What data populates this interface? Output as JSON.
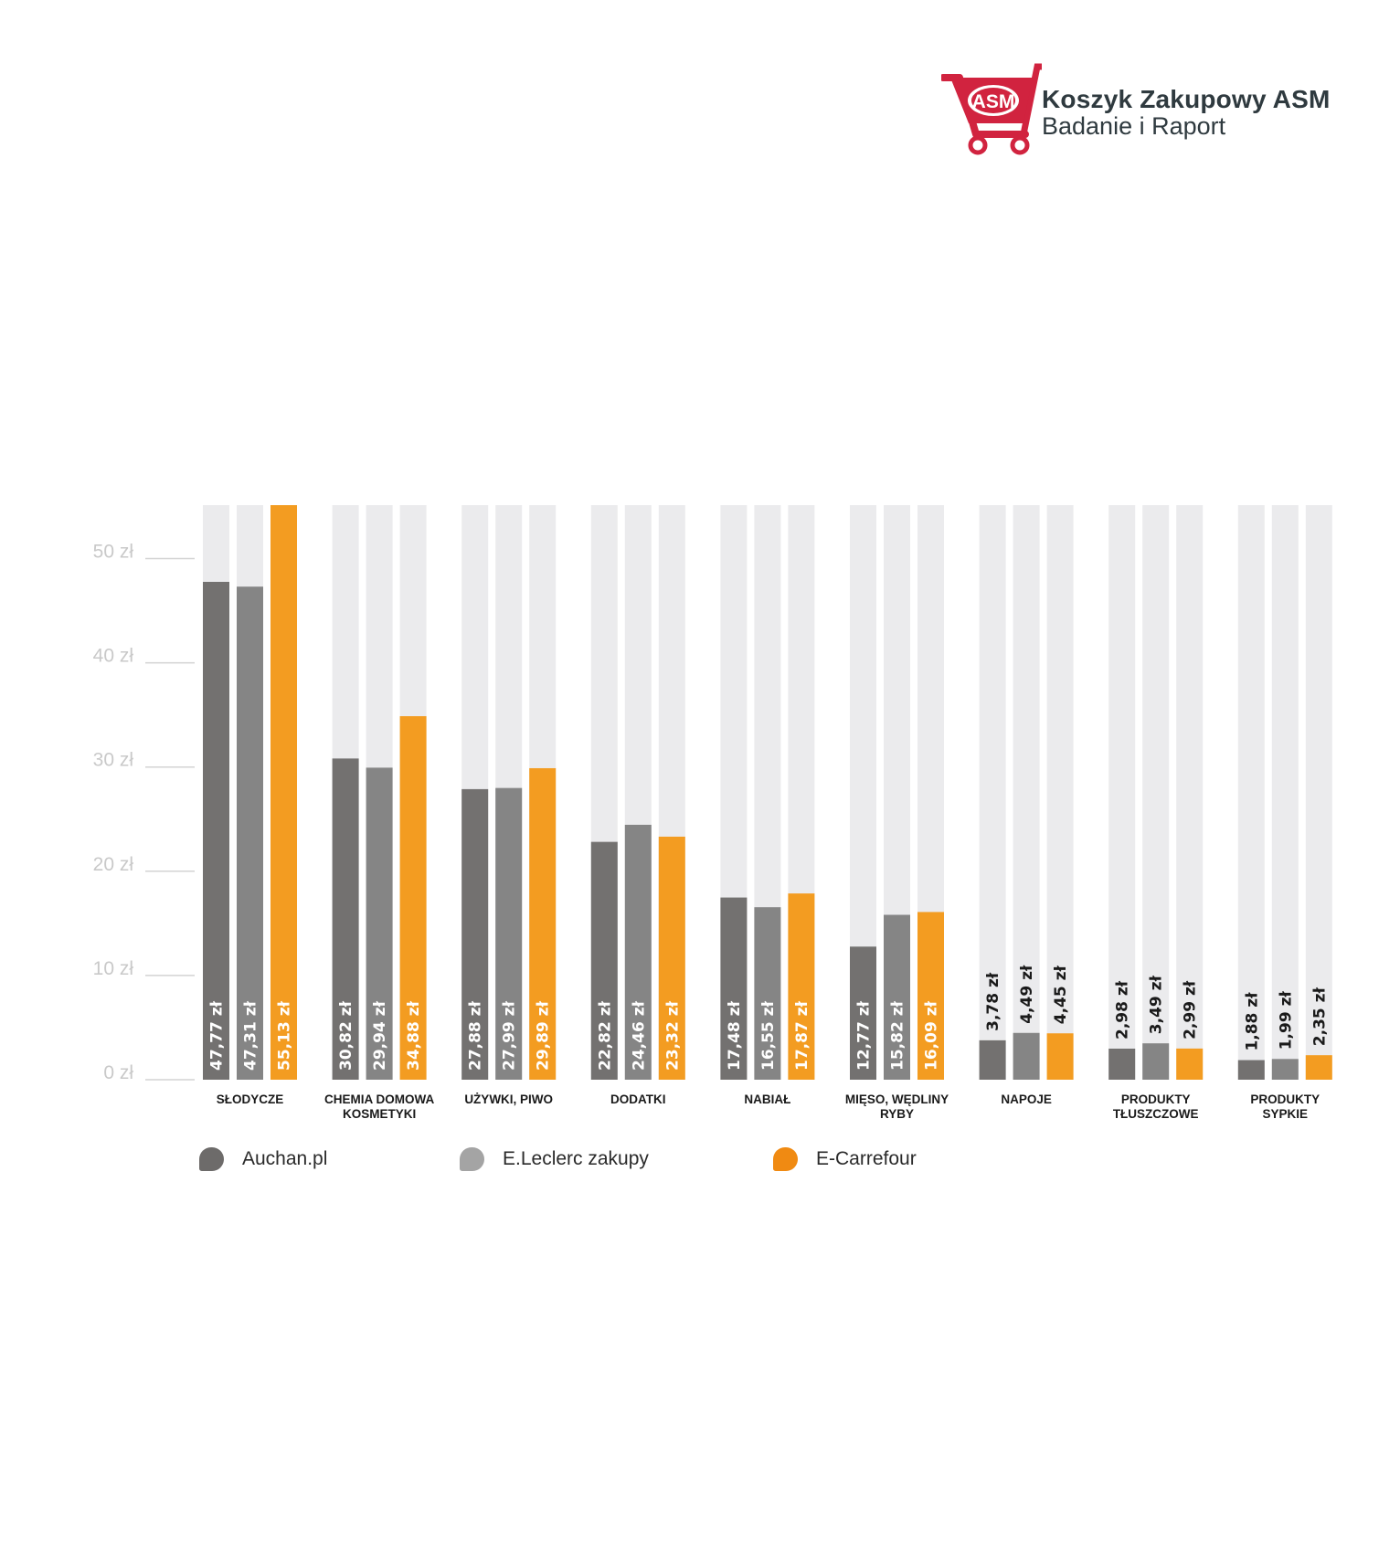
{
  "brand": {
    "logo_text": "ASM",
    "title": "Koszyk Zakupowy ASM",
    "subtitle": "Badanie i Raport",
    "accent_color": "#d1233f",
    "text_color": "#2f3a3f"
  },
  "chart_data": {
    "type": "bar",
    "yunit": "zł",
    "ylim": [
      0,
      55.13
    ],
    "yticks": [
      {
        "value": 0,
        "label": "0 zł"
      },
      {
        "value": 10,
        "label": "10 zł"
      },
      {
        "value": 20,
        "label": "20 zł"
      },
      {
        "value": 30,
        "label": "30 zł"
      },
      {
        "value": 40,
        "label": "40 zł"
      },
      {
        "value": 50,
        "label": "50 zł"
      }
    ],
    "categories": [
      [
        "SŁODYCZE"
      ],
      [
        "CHEMIA DOMOWA",
        "KOSMETYKI"
      ],
      [
        "UŻYWKI, PIWO"
      ],
      [
        "DODATKI"
      ],
      [
        "NABIAŁ"
      ],
      [
        "MIĘSO, WĘDLINY",
        "RYBY"
      ],
      [
        "NAPOJE"
      ],
      [
        "PRODUKTY",
        "TŁUSZCZOWE"
      ],
      [
        "PRODUKTY",
        "SYPKIE"
      ]
    ],
    "series": [
      {
        "name": "Auchan.pl",
        "color": "#737170",
        "values": [
          47.77,
          30.82,
          27.88,
          22.82,
          17.48,
          12.77,
          3.78,
          2.98,
          1.88
        ],
        "labels": [
          "47,77 zł",
          "30,82 zł",
          "27,88 zł",
          "22,82 zł",
          "17,48 zł",
          "12,77 zł",
          "3,78 zł",
          "2,98 zł",
          "1,88 zł"
        ]
      },
      {
        "name": "E.Leclerc zakupy",
        "color": "#858585",
        "values": [
          47.31,
          29.94,
          27.99,
          24.46,
          16.55,
          15.82,
          4.49,
          3.49,
          1.99
        ],
        "labels": [
          "47,31 zł",
          "29,94 zł",
          "27,99 zł",
          "24,46 zł",
          "16,55 zł",
          "15,82 zł",
          "4,49 zł",
          "3,49 zł",
          "1,99 zł"
        ]
      },
      {
        "name": "E-Carrefour",
        "color": "#f39c21",
        "values": [
          55.13,
          34.88,
          29.89,
          23.32,
          17.87,
          16.09,
          4.45,
          2.99,
          2.35
        ],
        "labels": [
          "55,13 zł",
          "34,88 zł",
          "29,89 zł",
          "23,32 zł",
          "17,87 zł",
          "16,09 zł",
          "4,45 zł",
          "2,99 zł",
          "2,35 zł"
        ]
      }
    ],
    "background_bar_color": "#ebebed",
    "grid": false,
    "legend_position": "bottom-left"
  },
  "legend_colors": {
    "Auchan.pl": "#6d6b6a",
    "E.Leclerc zakupy": "#a4a4a4",
    "E-Carrefour": "#f08a12"
  }
}
